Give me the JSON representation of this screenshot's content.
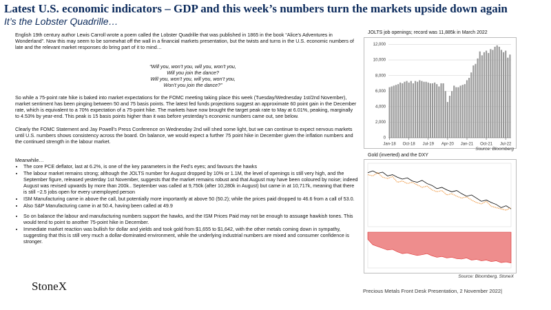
{
  "header": {
    "title": "Latest U.S. economic indicators – GDP and this week’s numbers turn the markets upside down again",
    "subtitle": "It’s the Lobster Quadrille…"
  },
  "body": {
    "intro": "English 19th century author Lewis Carroll wrote a poem called the Lobster Quadrille that was published in 1865 in the book “Alice’s Adventures in Wonderland”.  Now this may seem to be somewhat off the wall in a financial markets presentation, but the twists and turns in the U.S. economic numbers of late and the relevant market responses do bring part of it to mind…",
    "quote": [
      "“Will you, won’t you, will you, won’t you,",
      "Will you join the dance?",
      "Will you, won’t you, will you, won’t you,",
      "Won’t you join the dance?”"
    ],
    "paragraph2": "So while a 75-point rate hike is baked into market expectations for the FOMC meeting taking place this week (Tuesday/Wednesday 1st/2nd November), market sentiment has been pinging between 50 and 75 basis points. The latest fed funds projections suggest an approximate 60 point gain in the December rate, which is equivalent to a 70% expectation of a 75-point hike. The markets have now brought the target peak rate to May at 6.01%, peaking, marginally to 4.53% by year-end. This peak is 15 basis points higher than it was before yesterday’s economic numbers came out, see below.",
    "paragraph3": "Clearly the FOMC Statement and Jay Powell’s Press Conference on Wednesday 2nd will shed some light, but we can continue to expect nervous markets until U.S. numbers shows consistency across the board.  On balance, we would expect a further 75 point hike in December given the inflation numbers and the continued strength in the labour market.",
    "meanwhile": "Meanwhile…",
    "bullet_groups": [
      [
        "The core PCE deflator, last at 6.2%, is one of the key parameters in the Fed’s eyes; and favours the hawks",
        "The labour market remains strong; although the JOLTS number for August dropped by 10% or 1.1M, the level of openings is still very high, and the September figure, released yesterday 1st November,  suggests that the market remains robust and that August may have been coloured by noise; indeed August was revised upwards by more than 200k..  September was called at 9,750k (after 10,280k in August) but came in at 10,717k, meaning that there is still ~2.5 jobs open for every unemployed person",
        "ISM Manufacturing came in above the call, but potentially more importantly at above 50 (50.2); while the prices paid dropped to 46.6 from a call of 53.0.",
        "Also S&P Manufacturing came in at 50.4, having been called at 49.9"
      ],
      [
        "So on balance the labour and manufacturing numbers support the hawks, and the ISM Prices Paid may not be enough to assuage hawkish tones.  This would tend to point to another 75-point hike in December.",
        "Immediate market reaction was bullish for dollar and yields and took gold from $1,655 to $1,642, with the other metals coming down in sympathy, suggesting that this is still very much a dollar-dominated environment, while the underlying industrial numbers are mixed and consumer confidence is stronger."
      ]
    ]
  },
  "chart_data": [
    {
      "type": "bar",
      "title": "JOLTS job openings; record was  11,885k in March 2022",
      "source": "Source: Bloomberg",
      "color": "#9a9a9a",
      "grid": true,
      "categories": [
        "Jan-18",
        null,
        null,
        null,
        null,
        null,
        null,
        null,
        null,
        "Oct-18",
        null,
        null,
        null,
        null,
        null,
        null,
        null,
        null,
        "Jul-19",
        null,
        null,
        null,
        null,
        null,
        null,
        null,
        null,
        "Apr-20",
        null,
        null,
        null,
        null,
        null,
        null,
        null,
        null,
        "Jan-21",
        null,
        null,
        null,
        null,
        null,
        null,
        null,
        null,
        "Oct-21",
        null,
        null,
        null,
        null,
        null,
        null,
        null,
        null,
        "Jul-22",
        null,
        null
      ],
      "values": [
        6500,
        6600,
        6700,
        6800,
        6900,
        7100,
        7000,
        7200,
        7300,
        7100,
        7300,
        7000,
        7300,
        7200,
        7400,
        7300,
        7200,
        7200,
        7100,
        7000,
        7000,
        7100,
        6900,
        6600,
        7000,
        7000,
        6000,
        4600,
        5400,
        6000,
        6700,
        6500,
        6500,
        6700,
        6800,
        6900,
        7400,
        7700,
        8400,
        9300,
        9500,
        10200,
        11100,
        10600,
        11000,
        11200,
        10900,
        11400,
        11300,
        11700,
        11885,
        11700,
        11300,
        11000,
        11200,
        10300,
        10700
      ],
      "ylim": [
        0,
        12400
      ],
      "yticks": [
        0,
        {
          "value": 2000,
          "label": "2,000"
        },
        {
          "value": 4000,
          "label": "4,000"
        },
        {
          "value": 6000,
          "label": "6,000"
        },
        {
          "value": 8000,
          "label": "8,000"
        },
        {
          "value": 10000,
          "label": "10,000"
        },
        {
          "value": 12000,
          "label": "12,000"
        }
      ]
    },
    {
      "type": "line",
      "title": "Gold (inverted) and the DXY",
      "source": "Source: Bloomberg, StoneX",
      "ylim": [
        0,
        100
      ],
      "y2lim": [
        -100,
        0
      ],
      "series": [
        {
          "color": "#000000",
          "values": [
            85,
            88,
            84,
            86,
            80,
            82,
            78,
            75,
            77,
            72,
            70,
            73,
            68,
            65,
            60,
            62,
            58,
            55,
            57,
            52,
            48,
            50,
            45,
            40,
            42,
            38,
            35,
            30,
            33,
            28
          ]
        },
        {
          "color": "#f0a050",
          "values": [
            82,
            80,
            85,
            78,
            76,
            79,
            70,
            72,
            68,
            70,
            66,
            62,
            64,
            58,
            55,
            57,
            50,
            52,
            48,
            45,
            47,
            42,
            38,
            36,
            40,
            32,
            30,
            28,
            26,
            30
          ]
        },
        {
          "color": "#e03030",
          "axis": "y2",
          "values": [
            -20,
            -35,
            -40,
            -45,
            -50,
            -48,
            -55,
            -60,
            -58,
            -62,
            -65,
            -63,
            -60,
            -66,
            -70,
            -68,
            -72,
            -70,
            -74,
            -75,
            -72,
            -78,
            -76,
            -80,
            -78,
            -82,
            -80,
            -85,
            -83,
            -86
          ]
        }
      ]
    }
  ],
  "footer": {
    "logo": "StoneX",
    "text": "Precious Metals Front Desk Presentation, 2 November 2022|"
  }
}
